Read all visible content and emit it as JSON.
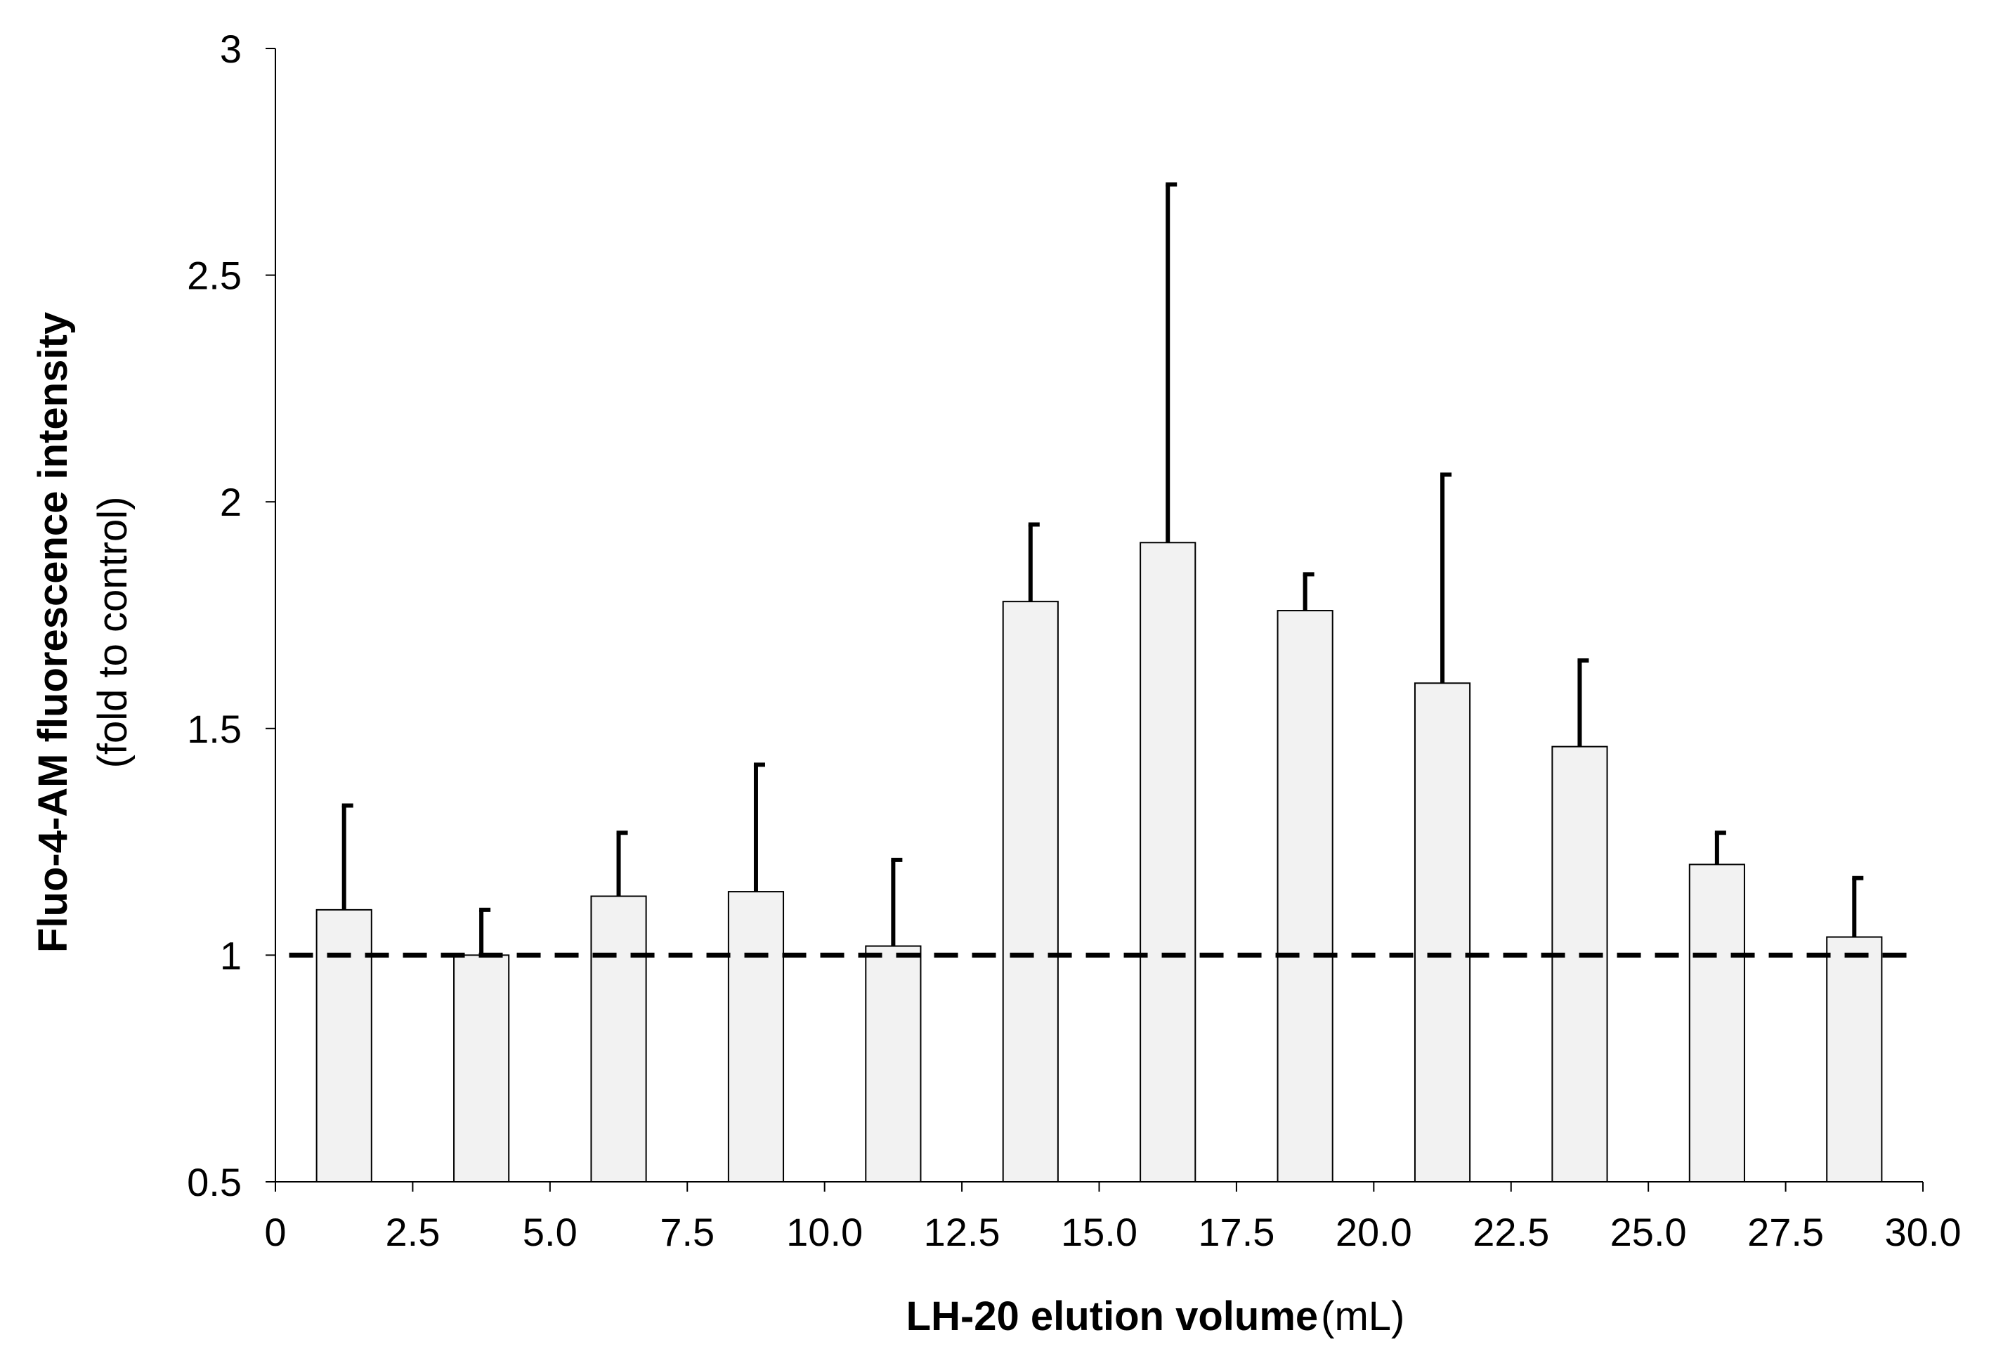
{
  "chart_data": {
    "type": "bar",
    "xlabel_bold": "LH-20 elution volume",
    "xlabel_unit": "(mL)",
    "ylabel_bold": "Fluo-4-AM fluorescence intensity",
    "ylabel_sub": "(fold to control)",
    "xlim": [
      0,
      30
    ],
    "ylim": [
      0.5,
      3
    ],
    "x_ticks": [
      "0",
      "2.5",
      "5.0",
      "7.5",
      "10.0",
      "12.5",
      "15.0",
      "17.5",
      "20.0",
      "22.5",
      "25.0",
      "27.5",
      "30.0"
    ],
    "y_ticks": [
      "0.5",
      "1",
      "1.5",
      "2",
      "2.5",
      "3"
    ],
    "bar_width_ml": 1.0,
    "x": [
      1.25,
      3.75,
      6.25,
      8.75,
      11.25,
      13.75,
      16.25,
      18.75,
      21.25,
      23.75,
      26.25,
      28.75
    ],
    "values": [
      1.1,
      1.0,
      1.13,
      1.14,
      1.02,
      1.78,
      1.91,
      1.76,
      1.6,
      1.46,
      1.2,
      1.04
    ],
    "error_upper": [
      1.33,
      1.1,
      1.27,
      1.42,
      1.21,
      1.95,
      2.7,
      1.84,
      2.06,
      1.65,
      1.27,
      1.17
    ],
    "reference_line": 1.0,
    "colors": {
      "bar_fill": "#f2f2f2",
      "bar_stroke": "#000000",
      "error_bar": "#000000",
      "reference_line": "#000000",
      "axis": "#000000"
    }
  }
}
